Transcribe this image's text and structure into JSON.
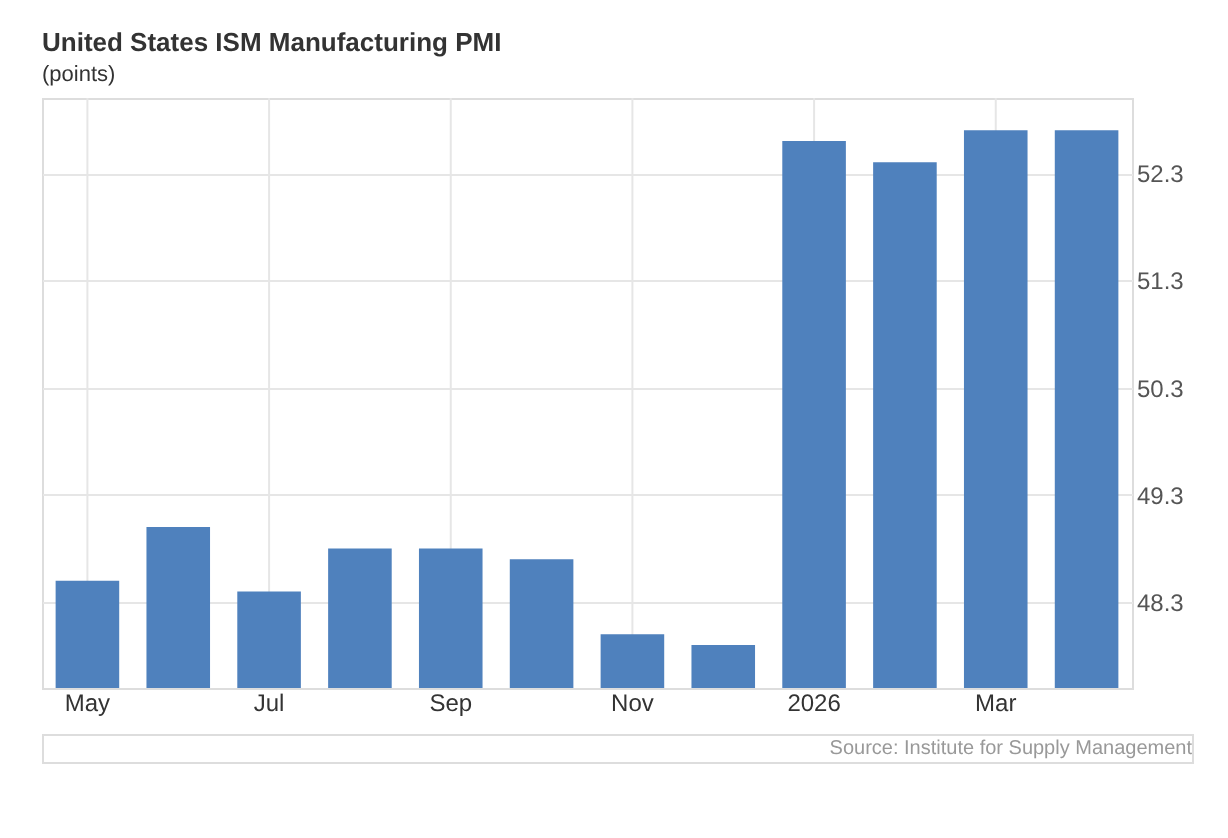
{
  "chart_data": {
    "type": "bar",
    "title": "United States ISM Manufacturing PMI",
    "subtitle": "(points)",
    "categories": [
      "May",
      null,
      "Jul",
      null,
      "Sep",
      null,
      "Nov",
      null,
      "2026",
      null,
      "Mar",
      null
    ],
    "values": [
      48.5,
      49.0,
      48.4,
      48.8,
      48.8,
      48.7,
      48.0,
      47.9,
      52.6,
      52.4,
      52.7,
      52.7
    ],
    "color": "#4f81bd",
    "ylim": [
      47.5,
      53.0
    ],
    "yticks": [
      48.3,
      49.3,
      50.3,
      51.3,
      52.3
    ],
    "grid": true,
    "annotations": [
      "Source: Institute for Supply Management"
    ]
  }
}
